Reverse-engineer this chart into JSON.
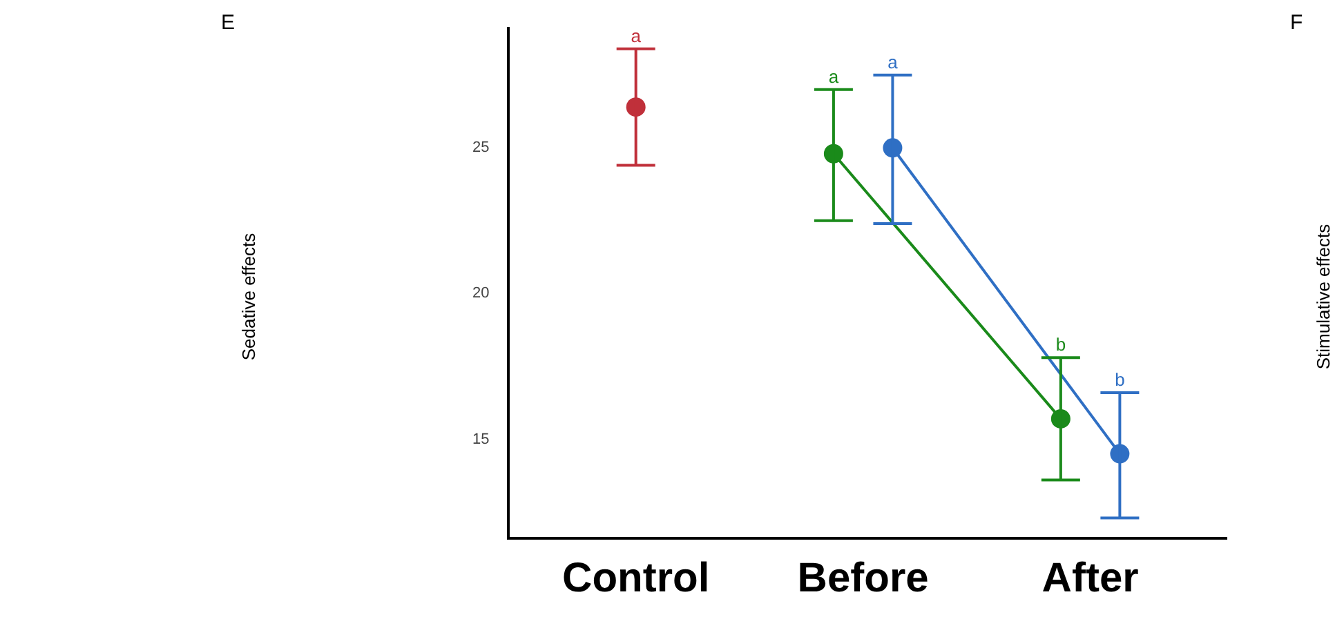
{
  "chart_data": {
    "type": "line",
    "title": "E",
    "categories": [
      "Control",
      "Before",
      "After"
    ],
    "series": [
      {
        "type": "scatter",
        "color": "#c0303a",
        "x": [
          "Control"
        ],
        "values": [
          26.4
        ],
        "errors": [
          [
            24.4,
            28.4
          ]
        ]
      },
      {
        "type": "line",
        "color": "#1a8a1a",
        "x": [
          "Before",
          "After"
        ],
        "values": [
          24.8,
          15.7
        ],
        "errors": [
          [
            22.5,
            27.0
          ],
          [
            13.6,
            17.8
          ]
        ]
      },
      {
        "type": "line",
        "color": "#2f6fc4",
        "x": [
          "Before",
          "After"
        ],
        "values": [
          25.0,
          14.5
        ],
        "errors": [
          [
            22.4,
            27.5
          ],
          [
            12.3,
            16.6
          ]
        ]
      }
    ],
    "ylim": [
      11.6,
      29.1
    ],
    "yticks": [
      15,
      20,
      25
    ],
    "grid": false,
    "legend": false,
    "marker": "circle",
    "line_style": "solid",
    "annotations": [
      "a",
      "a",
      "b",
      "a",
      "b",
      "Sedative effects",
      "F",
      "Stimulative effects"
    ]
  }
}
